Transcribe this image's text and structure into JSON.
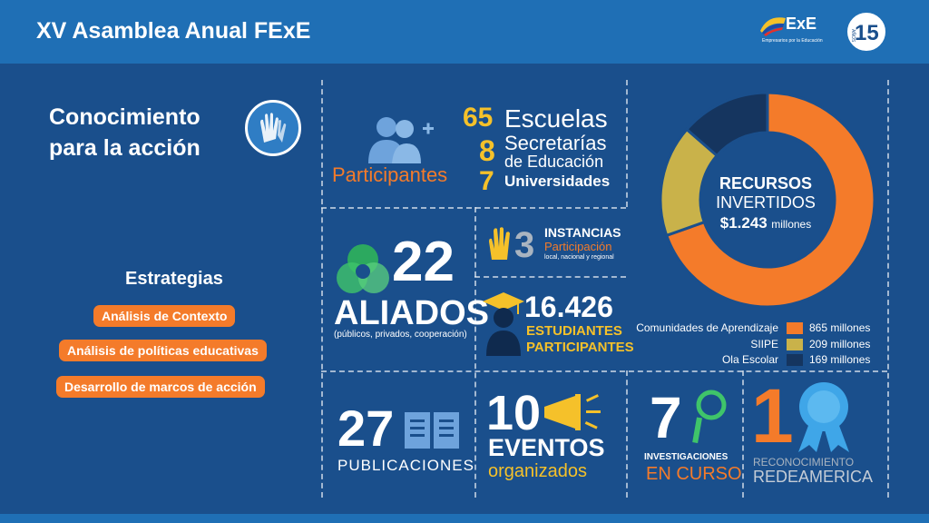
{
  "header": {
    "title": "XV Asamblea Anual FExE",
    "logo_brand": "ExE",
    "logo_tagline": "Empresarios por la Educación",
    "anniversary_number": "15",
    "anniversary_word": "AÑOS"
  },
  "left": {
    "title_line1": "Conocimiento",
    "title_line2": "para la acción",
    "strategies_title": "Estrategias",
    "strategies": [
      "Análisis de Contexto",
      "Análisis de políticas educativas",
      "Desarrollo de marcos de acción"
    ]
  },
  "participants": {
    "label": "Participantes",
    "schools_num": "65",
    "schools_label": "Escuelas",
    "secretariats_num": "8",
    "secretariats_label1": "Secretarías",
    "secretariats_label2": "de Educación",
    "universities_num": "7",
    "universities_label": "Universidades"
  },
  "allies": {
    "num": "22",
    "label": "ALIADOS",
    "sub": "(públicos, privados, cooperación)"
  },
  "instances": {
    "num": "3",
    "title": "INSTANCIAS",
    "sub1": "Participación",
    "sub2": "local, nacional y regional"
  },
  "students": {
    "num": "16.426",
    "label1": "ESTUDIANTES",
    "label2": "PARTICIPANTES"
  },
  "resources": {
    "line1": "RECURSOS",
    "line2": "INVERTIDOS",
    "amount": "$1.243",
    "unit": "millones",
    "colors": {
      "comunidades": "#f47b2a",
      "siipe": "#c9b24a",
      "ola": "#15355f"
    },
    "legend": [
      {
        "label": "Comunidades de Aprendizaje",
        "value": "865 millones",
        "amount": 865
      },
      {
        "label": "SIIPE",
        "value": "209 millones",
        "amount": 209
      },
      {
        "label": "Ola Escolar",
        "value": "169 millones",
        "amount": 169
      }
    ]
  },
  "publications": {
    "num": "27",
    "label": "PUBLICACIONES"
  },
  "events": {
    "num": "10",
    "label1": "EVENTOS",
    "label2": "organizados"
  },
  "research": {
    "num": "7",
    "label1": "INVESTIGACIONES",
    "label2": "EN CURSO"
  },
  "recognition": {
    "num": "1",
    "label1": "RECONOCIMIENTO",
    "label2": "REDEAMERICA"
  }
}
